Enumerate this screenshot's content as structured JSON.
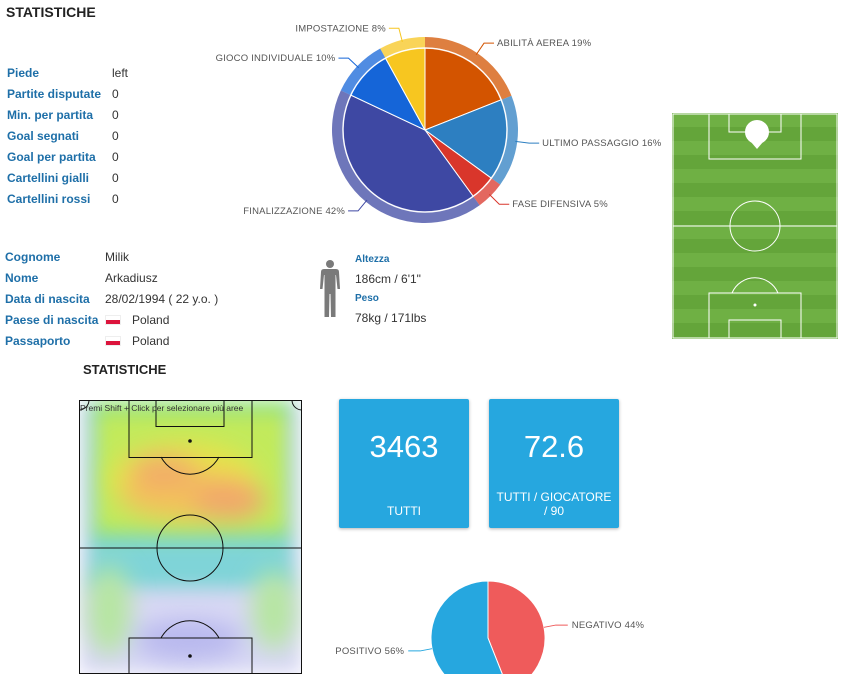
{
  "colors": {
    "label_blue": "#1e6fa8",
    "card_blue": "#26a7df",
    "pitch_green": "#6aaa3c"
  },
  "top_heading": "STATISTICHE",
  "stats": [
    {
      "label": "Piede",
      "value": "left"
    },
    {
      "label": "Partite disputate",
      "value": "0"
    },
    {
      "label": "Min. per partita",
      "value": "0"
    },
    {
      "label": "Goal segnati",
      "value": "0"
    },
    {
      "label": "Goal per partita",
      "value": "0"
    },
    {
      "label": "Cartellini gialli",
      "value": "0"
    },
    {
      "label": "Cartellini rossi",
      "value": "0"
    }
  ],
  "skills_chart": {
    "type": "pie",
    "slices": [
      {
        "label": "ABILITÀ AEREA 19%",
        "value": 19,
        "color": "#d35400"
      },
      {
        "label": "ULTIMO PASSAGGIO 16%",
        "value": 16,
        "color": "#2d7fc1"
      },
      {
        "label": "FASE DIFENSIVA 5%",
        "value": 5,
        "color": "#d9362b"
      },
      {
        "label": "FINALIZZAZIONE 42%",
        "value": 42,
        "color": "#3e48a3"
      },
      {
        "label": "GIOCO INDIVIDUALE 10%",
        "value": 10,
        "color": "#1565d8"
      },
      {
        "label": "IMPOSTAZIONE 8%",
        "value": 8,
        "color": "#f7c620"
      }
    ]
  },
  "profile": [
    {
      "label": "Cognome",
      "value": "Milik",
      "flag": false
    },
    {
      "label": "Nome",
      "value": "Arkadiusz",
      "flag": false
    },
    {
      "label": "Data di nascita",
      "value": "28/02/1994 ( 22 y.o. )",
      "flag": false
    },
    {
      "label": "Paese di nascita",
      "value": "Poland",
      "flag": true
    },
    {
      "label": "Passaporto",
      "value": "Poland",
      "flag": true
    }
  ],
  "body": {
    "height_label": "Altezza",
    "height_value": "186cm / 6'1\"",
    "weight_label": "Peso",
    "weight_value": "78kg / 171lbs"
  },
  "second_heading": "STATISTICHE",
  "heatmap_hint": "Premi Shift + Click per selezionare più aree",
  "cards": [
    {
      "value": "3463",
      "caption": "TUTTI"
    },
    {
      "value": "72.6",
      "caption": "TUTTI / GIOCATORE / 90"
    }
  ],
  "chart_data": {
    "type": "pie",
    "categories": [
      "NEGATIVO",
      "POSITIVO"
    ],
    "values": [
      44,
      56
    ],
    "labels": [
      "NEGATIVO 44%",
      "POSITIVO 56%"
    ],
    "colors": [
      "#ef5b5b",
      "#26a7df"
    ]
  }
}
